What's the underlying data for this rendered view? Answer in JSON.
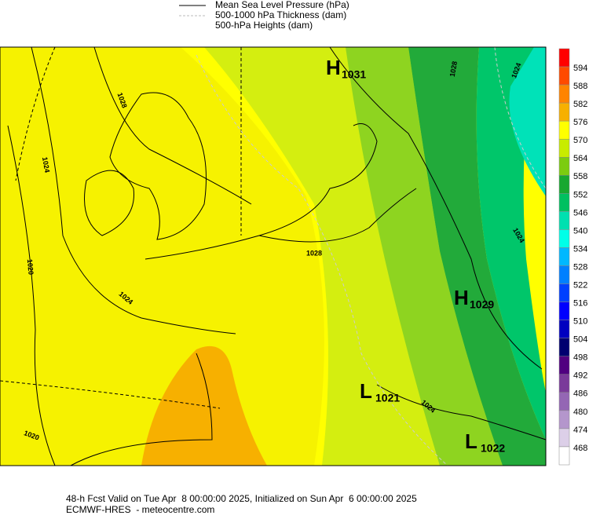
{
  "legend": [
    "Mean Sea Level Pressure (hPa)",
    "500-1000 hPa Thickness (dam)",
    "500-hPa Heights (dam)"
  ],
  "colorbar": {
    "ticks": [
      594,
      588,
      582,
      576,
      570,
      564,
      558,
      552,
      546,
      540,
      534,
      528,
      522,
      516,
      510,
      504,
      498,
      492,
      486,
      480,
      474,
      468
    ],
    "colors": [
      "#ff0000",
      "#ff4a00",
      "#ff8400",
      "#f7b000",
      "#ffff00",
      "#c8ec00",
      "#7ccc10",
      "#18a830",
      "#00c060",
      "#00e0b0",
      "#00ffe8",
      "#00b8ff",
      "#0080ff",
      "#0040ff",
      "#0000ff",
      "#0000c0",
      "#000070",
      "#500080",
      "#7a3a9a",
      "#9466b4",
      "#b496cc",
      "#dccfe8",
      "#ffffff"
    ]
  },
  "pressure_centers": [
    {
      "letter": "H",
      "value": "1031"
    },
    {
      "letter": "H",
      "value": "1029"
    },
    {
      "letter": "L",
      "value": "1021"
    },
    {
      "letter": "L",
      "value": "1022"
    }
  ],
  "contour_labels": [
    "1028",
    "1024",
    "1020",
    "1024",
    "1028",
    "1020",
    "1024",
    "1024",
    "1028",
    "1024"
  ],
  "footer": [
    "48-h Fcst Valid on Tue Apr  8 00:00:00 2025, Initialized on Sun Apr  6 00:00:00 2025",
    "ECMWF-HRES  - meteocentre.com"
  ]
}
